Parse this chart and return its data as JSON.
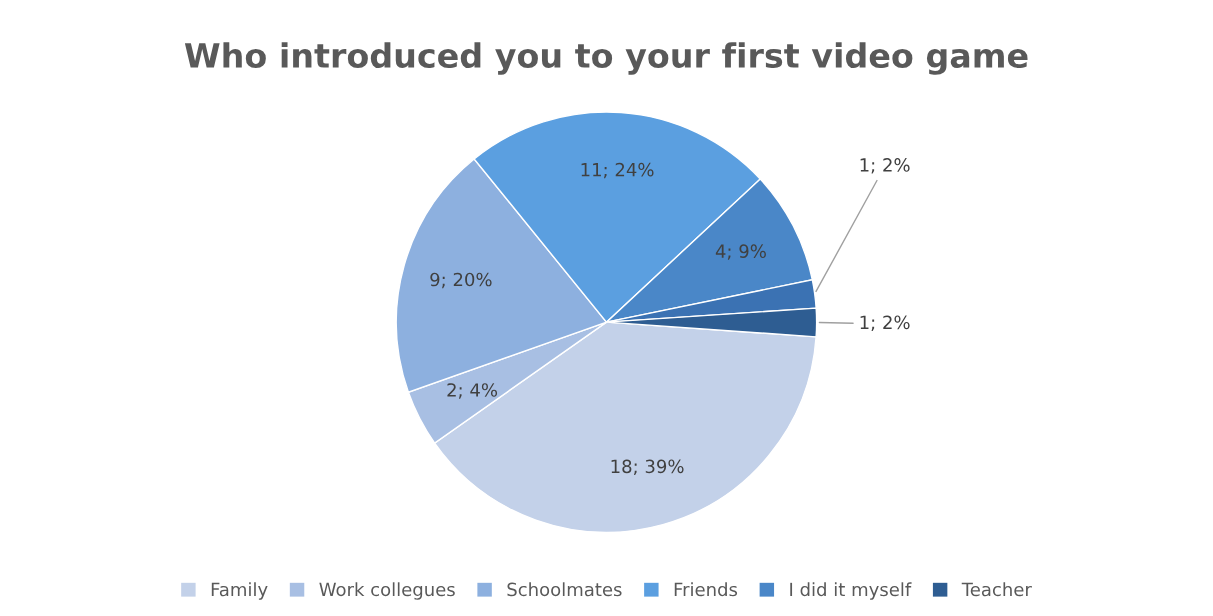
{
  "chart_data": {
    "type": "pie",
    "title": "Who introduced you to your first video game",
    "categories": [
      "Family",
      "Work collegues",
      "Schoolmates",
      "Friends",
      "I did it myself",
      null,
      "Teacher"
    ],
    "values": [
      18,
      2,
      9,
      11,
      4,
      1,
      1
    ],
    "colors": [
      "#c3d1e9",
      "#a8bfe3",
      "#8db0df",
      "#5b9fe0",
      "#4a87c8",
      "#3b72b3",
      "#2e5d92"
    ],
    "value_labels": [
      "18; 39%",
      "2; 4%",
      "9; 20%",
      "11; 24%",
      "4; 9%",
      "1; 2%",
      "1; 2%"
    ],
    "legend": "bottom"
  }
}
